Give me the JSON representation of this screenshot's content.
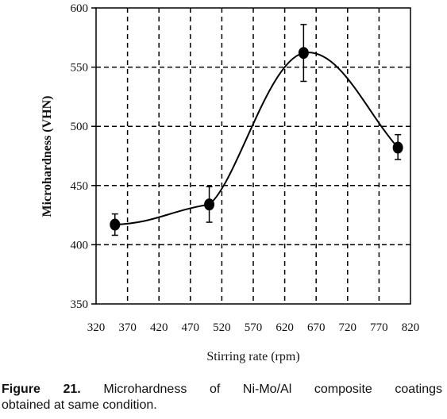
{
  "chart_data": {
    "type": "line",
    "xlabel": "Stirring rate (rpm)",
    "ylabel": "Microhardness (VHN)",
    "xlim": [
      320,
      820
    ],
    "ylim": [
      350,
      600
    ],
    "x_ticks": [
      320,
      370,
      420,
      470,
      520,
      570,
      620,
      670,
      720,
      770,
      820
    ],
    "y_ticks": [
      350,
      400,
      450,
      500,
      550,
      600
    ],
    "grid": true,
    "series": [
      {
        "points": [
          {
            "x": 350,
            "y": 417,
            "err_low": 408,
            "err_high": 426
          },
          {
            "x": 500,
            "y": 434,
            "err_low": 419,
            "err_high": 449
          },
          {
            "x": 650,
            "y": 562,
            "err_low": 538,
            "err_high": 586
          },
          {
            "x": 800,
            "y": 482,
            "err_low": 472,
            "err_high": 493
          }
        ]
      }
    ]
  },
  "caption": {
    "figure_label": "Figure 21.",
    "line1_text": "Microhardness of Ni-Mo/Al composite coatings",
    "line2_text": "obtained at same condition."
  },
  "colors": {
    "line": "#000000",
    "grid": "#000000",
    "marker": "#000000"
  }
}
